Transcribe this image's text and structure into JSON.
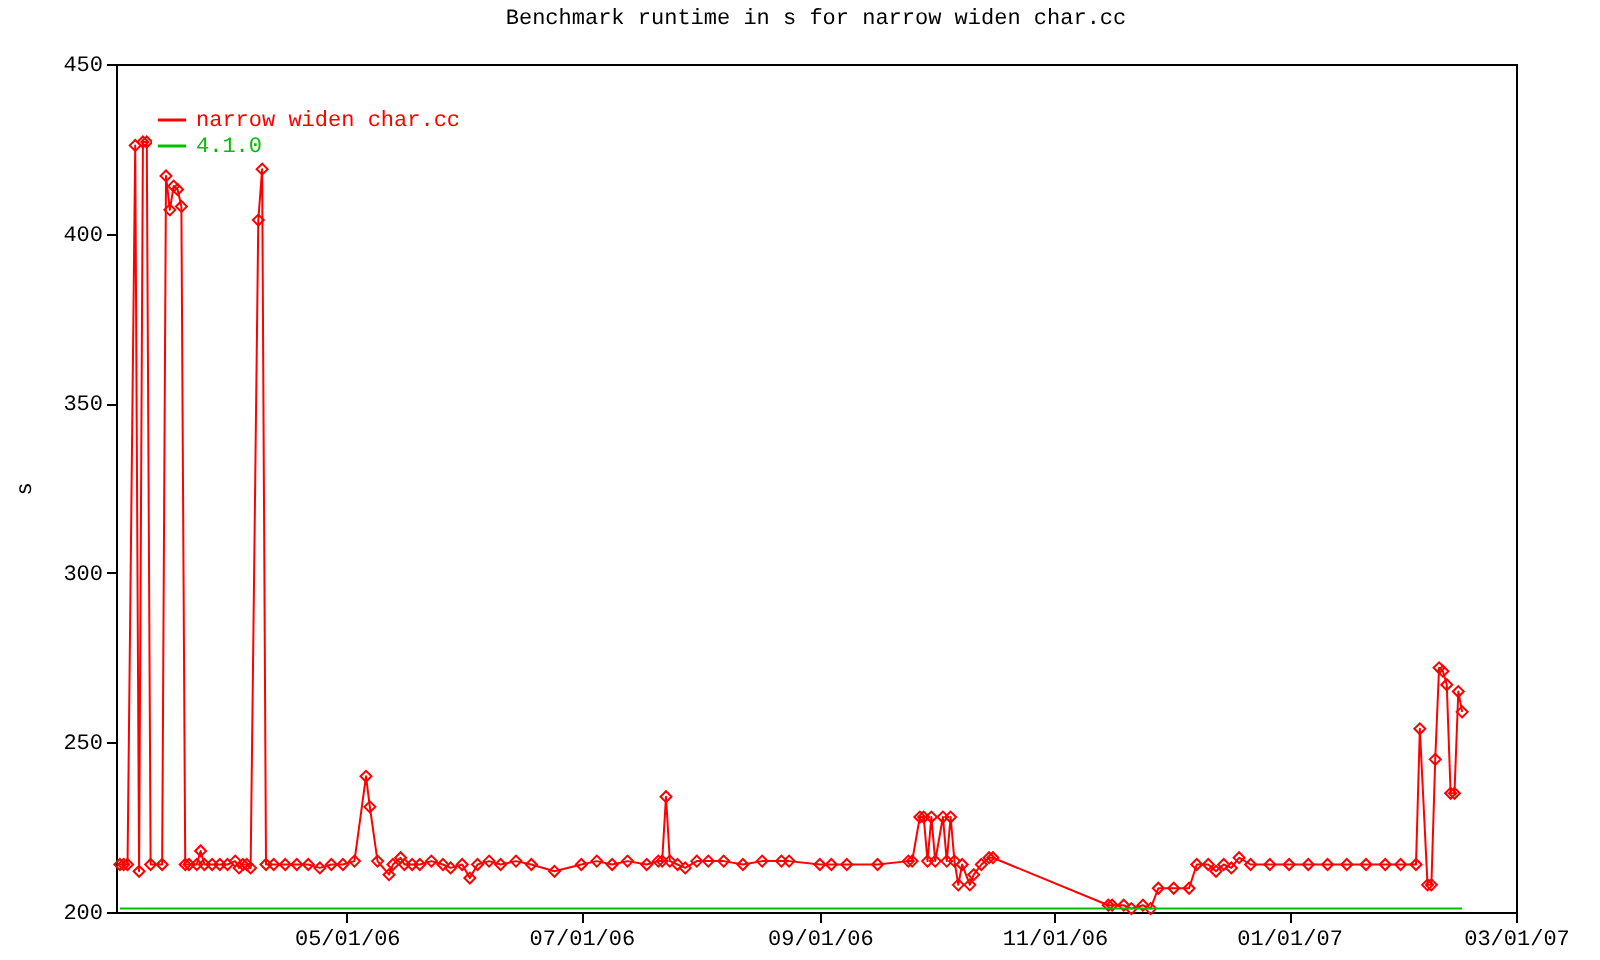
{
  "chart_data": {
    "type": "line",
    "title": "Benchmark runtime in s for narrow widen char.cc",
    "ylabel": "s",
    "xlim": [
      "2006-03-02",
      "2007-03-01"
    ],
    "xticks": [
      {
        "value": "2006-05-01",
        "label": "05/01/06"
      },
      {
        "value": "2006-07-01",
        "label": "07/01/06"
      },
      {
        "value": "2006-09-01",
        "label": "09/01/06"
      },
      {
        "value": "2006-11-01",
        "label": "11/01/06"
      },
      {
        "value": "2007-01-01",
        "label": "01/01/07"
      },
      {
        "value": "2007-03-01",
        "label": "03/01/07"
      }
    ],
    "ylim": [
      200,
      450
    ],
    "yticks": [
      200,
      250,
      300,
      350,
      400,
      450
    ],
    "grid": false,
    "legend": "top left",
    "marker": "diamond",
    "series": [
      {
        "name": "narrow widen char.cc",
        "color": "#ff0000",
        "x": [
          "2006-03-03",
          "2006-03-04",
          "2006-03-05",
          "2006-03-07",
          "2006-03-08",
          "2006-03-09",
          "2006-03-10",
          "2006-03-11",
          "2006-03-14",
          "2006-03-15",
          "2006-03-16",
          "2006-03-17",
          "2006-03-18",
          "2006-03-19",
          "2006-03-20",
          "2006-03-21",
          "2006-03-23",
          "2006-03-24",
          "2006-03-25",
          "2006-03-27",
          "2006-03-29",
          "2006-03-31",
          "2006-04-02",
          "2006-04-03",
          "2006-04-04",
          "2006-04-05",
          "2006-04-06",
          "2006-04-08",
          "2006-04-09",
          "2006-04-10",
          "2006-04-12",
          "2006-04-15",
          "2006-04-18",
          "2006-04-21",
          "2006-04-24",
          "2006-04-27",
          "2006-04-30",
          "2006-05-03",
          "2006-05-06",
          "2006-05-07",
          "2006-05-09",
          "2006-05-12",
          "2006-05-13",
          "2006-05-15",
          "2006-05-16",
          "2006-05-18",
          "2006-05-20",
          "2006-05-23",
          "2006-05-26",
          "2006-05-28",
          "2006-05-31",
          "2006-06-02",
          "2006-06-04",
          "2006-06-07",
          "2006-06-10",
          "2006-06-14",
          "2006-06-18",
          "2006-06-24",
          "2006-07-01",
          "2006-07-05",
          "2006-07-09",
          "2006-07-13",
          "2006-07-18",
          "2006-07-21",
          "2006-07-22",
          "2006-07-23",
          "2006-07-24",
          "2006-07-26",
          "2006-07-28",
          "2006-07-31",
          "2006-08-03",
          "2006-08-07",
          "2006-08-12",
          "2006-08-17",
          "2006-08-22",
          "2006-08-24",
          "2006-09-01",
          "2006-09-04",
          "2006-09-08",
          "2006-09-16",
          "2006-09-24",
          "2006-09-25",
          "2006-09-27",
          "2006-09-28",
          "2006-09-29",
          "2006-09-30",
          "2006-10-01",
          "2006-10-03",
          "2006-10-04",
          "2006-10-05",
          "2006-10-06",
          "2006-10-07",
          "2006-10-08",
          "2006-10-10",
          "2006-10-11",
          "2006-10-13",
          "2006-10-15",
          "2006-10-16",
          "2006-11-15",
          "2006-11-16",
          "2006-11-19",
          "2006-11-21",
          "2006-11-24",
          "2006-11-26",
          "2006-11-28",
          "2006-12-02",
          "2006-12-06",
          "2006-12-08",
          "2006-12-11",
          "2006-12-13",
          "2006-12-15",
          "2006-12-17",
          "2006-12-19",
          "2006-12-22",
          "2006-12-27",
          "2007-01-01",
          "2007-01-06",
          "2007-01-11",
          "2007-01-16",
          "2007-01-21",
          "2007-01-26",
          "2007-01-30",
          "2007-02-03",
          "2007-02-04",
          "2007-02-06",
          "2007-02-07",
          "2007-02-08",
          "2007-02-09",
          "2007-02-10",
          "2007-02-11",
          "2007-02-12",
          "2007-02-13",
          "2007-02-14",
          "2007-02-15"
        ],
        "values": [
          214,
          214,
          214,
          426,
          212,
          427,
          427,
          214,
          214,
          417,
          407,
          414,
          413,
          408,
          214,
          214,
          214,
          218,
          214,
          214,
          214,
          214,
          215,
          213,
          214,
          214,
          213,
          404,
          419,
          214,
          214,
          214,
          214,
          214,
          213,
          214,
          214,
          215,
          240,
          231,
          215,
          211,
          214,
          216,
          214,
          214,
          214,
          215,
          214,
          213,
          214,
          210,
          214,
          215,
          214,
          215,
          214,
          212,
          214,
          215,
          214,
          215,
          214,
          215,
          215,
          234,
          215,
          214,
          213,
          215,
          215,
          215,
          214,
          215,
          215,
          215,
          214,
          214,
          214,
          214,
          215,
          215,
          228,
          228,
          215,
          228,
          215,
          228,
          215,
          228,
          215,
          208,
          214,
          208,
          211,
          214,
          216,
          216,
          202,
          202,
          202,
          201,
          202,
          201,
          207,
          207,
          207,
          214,
          214,
          212,
          214,
          213,
          216,
          214,
          214,
          214,
          214,
          214,
          214,
          214,
          214,
          214,
          214,
          254,
          208,
          208,
          245,
          272,
          271,
          267,
          235,
          235,
          265,
          259
        ]
      },
      {
        "name": "4.1.0",
        "color": "#00c000",
        "marker": "none",
        "x": [
          "2006-03-03",
          "2007-02-15"
        ],
        "values": [
          201,
          201
        ]
      }
    ]
  }
}
